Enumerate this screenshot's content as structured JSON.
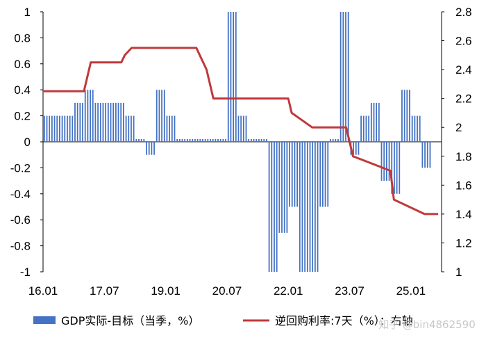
{
  "chart_data": {
    "type": "bar+line",
    "x_tick_labels": [
      "16.01",
      "17.07",
      "19.01",
      "20.07",
      "22.01",
      "23.07",
      "25.01"
    ],
    "left_axis": {
      "ylim": [
        -1,
        1
      ],
      "ticks": [
        "1",
        "0.8",
        "0.6",
        "0.4",
        "0.2",
        "0",
        "-0.2",
        "-0.4",
        "-0.6",
        "-0.8",
        "-1"
      ]
    },
    "right_axis": {
      "ylim": [
        1,
        2.8
      ],
      "ticks": [
        "2.8",
        "2.6",
        "2.4",
        "2.2",
        "2",
        "1.8",
        "1.6",
        "1.4",
        "1.2",
        "1"
      ]
    },
    "bar_series": {
      "name": "GDP实际-目标（当季，%）",
      "color": "#4472c4",
      "quarters": [
        "2016Q1",
        "2016Q2",
        "2016Q3",
        "2016Q4",
        "2017Q1",
        "2017Q2",
        "2017Q3",
        "2017Q4",
        "2018Q1",
        "2018Q2",
        "2018Q3",
        "2018Q4",
        "2019Q1",
        "2019Q2",
        "2019Q3",
        "2019Q4",
        "2020Q1",
        "2020Q2",
        "2020Q3",
        "2020Q4",
        "2021Q1",
        "2021Q2",
        "2021Q3",
        "2021Q4",
        "2022Q1",
        "2022Q2",
        "2022Q3",
        "2022Q4",
        "2023Q1",
        "2023Q2",
        "2023Q3",
        "2023Q4",
        "2024Q1",
        "2024Q2",
        "2024Q3",
        "2024Q4",
        "2025Q1",
        "2025Q2"
      ],
      "values": [
        0.2,
        0.2,
        0.2,
        0.3,
        0.4,
        0.3,
        0.3,
        0.3,
        0.2,
        0.0,
        -0.1,
        0.4,
        0.2,
        0.0,
        0.0,
        0.0,
        0.0,
        0.0,
        1.0,
        0.2,
        0.0,
        0.0,
        -1.0,
        -0.7,
        -0.5,
        -1.0,
        -1.0,
        -0.5,
        0.0,
        1.0,
        -0.1,
        0.2,
        0.3,
        -0.3,
        -0.4,
        0.4,
        0.2,
        -0.2
      ]
    },
    "line_series": {
      "name": "逆回购利率:7天（%）：右轴",
      "color": "#c0393b",
      "points": [
        [
          "2016-01",
          2.25
        ],
        [
          "2017-01",
          2.25
        ],
        [
          "2017-02",
          2.35
        ],
        [
          "2017-03",
          2.45
        ],
        [
          "2017-12",
          2.45
        ],
        [
          "2018-01",
          2.5
        ],
        [
          "2018-03",
          2.55
        ],
        [
          "2019-10",
          2.55
        ],
        [
          "2019-11",
          2.5
        ],
        [
          "2020-01",
          2.4
        ],
        [
          "2020-03",
          2.2
        ],
        [
          "2022-01",
          2.2
        ],
        [
          "2022-02",
          2.1
        ],
        [
          "2022-08",
          2.0
        ],
        [
          "2023-06",
          2.0
        ],
        [
          "2023-07",
          1.9
        ],
        [
          "2023-08",
          1.8
        ],
        [
          "2024-07",
          1.7
        ],
        [
          "2024-08",
          1.5
        ],
        [
          "2025-05",
          1.4
        ],
        [
          "2025-09",
          1.4
        ]
      ]
    },
    "legend": [
      {
        "type": "bar",
        "label": "GDP实际-目标（当季，%）"
      },
      {
        "type": "line",
        "label": "逆回购利率:7天（%）：右轴"
      }
    ],
    "legend_position": "bottom"
  },
  "watermark": "知乎 @bin4862590"
}
